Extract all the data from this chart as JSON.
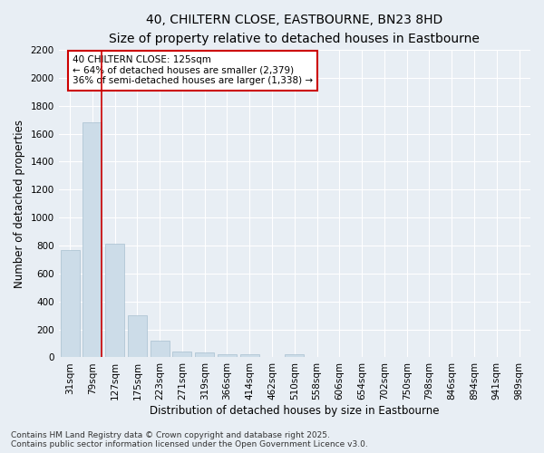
{
  "title_line1": "40, CHILTERN CLOSE, EASTBOURNE, BN23 8HD",
  "title_line2": "Size of property relative to detached houses in Eastbourne",
  "xlabel": "Distribution of detached houses by size in Eastbourne",
  "ylabel": "Number of detached properties",
  "categories": [
    "31sqm",
    "79sqm",
    "127sqm",
    "175sqm",
    "223sqm",
    "271sqm",
    "319sqm",
    "366sqm",
    "414sqm",
    "462sqm",
    "510sqm",
    "558sqm",
    "606sqm",
    "654sqm",
    "702sqm",
    "750sqm",
    "798sqm",
    "846sqm",
    "894sqm",
    "941sqm",
    "989sqm"
  ],
  "values": [
    770,
    1680,
    810,
    300,
    120,
    42,
    35,
    25,
    20,
    0,
    20,
    0,
    0,
    0,
    0,
    0,
    0,
    0,
    0,
    0,
    0
  ],
  "bar_color": "#ccdce8",
  "bar_edgecolor": "#a8c0d0",
  "vline_color": "#cc0000",
  "annotation_text": "40 CHILTERN CLOSE: 125sqm\n← 64% of detached houses are smaller (2,379)\n36% of semi-detached houses are larger (1,338) →",
  "annotation_box_color": "#ffffff",
  "annotation_box_edgecolor": "#cc0000",
  "ylim": [
    0,
    2200
  ],
  "yticks": [
    0,
    200,
    400,
    600,
    800,
    1000,
    1200,
    1400,
    1600,
    1800,
    2000,
    2200
  ],
  "background_color": "#e8eef4",
  "grid_color": "#ffffff",
  "footer_line1": "Contains HM Land Registry data © Crown copyright and database right 2025.",
  "footer_line2": "Contains public sector information licensed under the Open Government Licence v3.0.",
  "title_fontsize": 10,
  "subtitle_fontsize": 9,
  "axis_label_fontsize": 8.5,
  "tick_fontsize": 7.5,
  "annotation_fontsize": 7.5,
  "footer_fontsize": 6.5
}
